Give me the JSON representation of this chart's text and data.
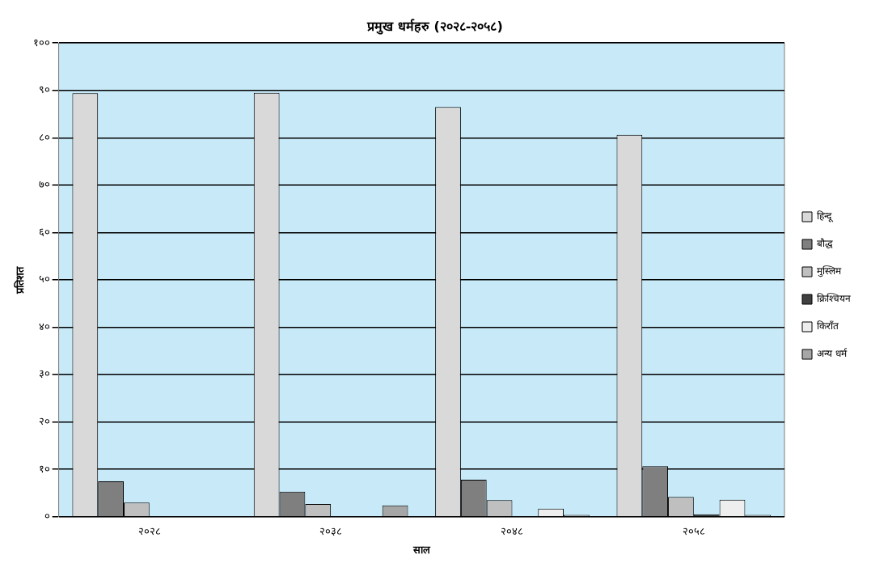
{
  "chart_data": {
    "type": "bar",
    "title": "प्रमुख धर्महरु (२०२८-२०५८)",
    "xlabel": "साल",
    "ylabel": "प्रतिशत",
    "categories": [
      "२०२८",
      "२०३८",
      "२०४८",
      "२०५८"
    ],
    "series": [
      {
        "name": "हिन्दू",
        "color": "#d9d9d9",
        "values": [
          89.4,
          89.5,
          86.5,
          80.6
        ]
      },
      {
        "name": "बौद्ध",
        "color": "#7f7f7f",
        "values": [
          7.5,
          5.3,
          7.8,
          10.7
        ]
      },
      {
        "name": "मुस्लिम",
        "color": "#bfbfbf",
        "values": [
          3,
          2.7,
          3.5,
          4.2
        ]
      },
      {
        "name": "क्रिश्चियन",
        "color": "#404040",
        "values": [
          null,
          null,
          null,
          0.5
        ]
      },
      {
        "name": "किराँत",
        "color": "#eeeeee",
        "values": [
          null,
          null,
          1.7,
          3.6
        ]
      },
      {
        "name": "अन्य धर्म",
        "color": "#a6a6a6",
        "values": [
          null,
          2.4,
          0.4,
          0.4
        ]
      }
    ],
    "ylim": [
      0,
      100
    ],
    "yticks": [
      {
        "value": 0,
        "label": "०"
      },
      {
        "value": 10,
        "label": "१०"
      },
      {
        "value": 20,
        "label": "२०"
      },
      {
        "value": 30,
        "label": "३०"
      },
      {
        "value": 40,
        "label": "४०"
      },
      {
        "value": 50,
        "label": "५०"
      },
      {
        "value": 60,
        "label": "६०"
      },
      {
        "value": 70,
        "label": "७०"
      },
      {
        "value": 80,
        "label": "८०"
      },
      {
        "value": 90,
        "label": "९०"
      },
      {
        "value": 100,
        "label": "१००"
      }
    ],
    "grid": "y",
    "legend": "right"
  }
}
